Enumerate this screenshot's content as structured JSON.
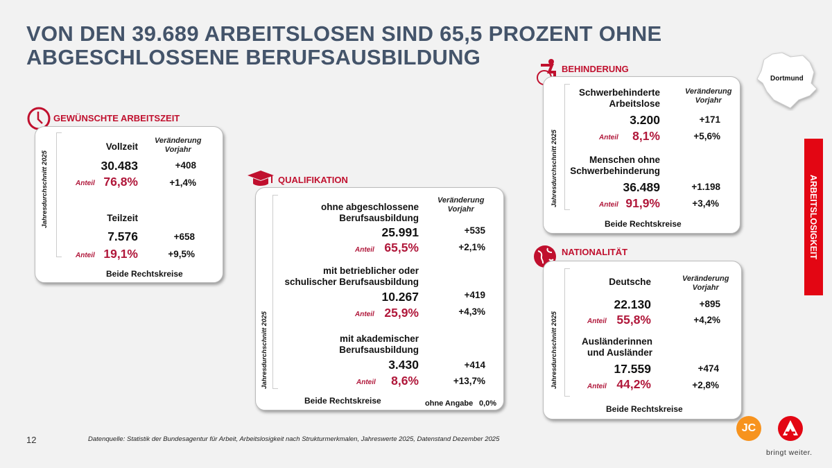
{
  "title": "VON DEN 39.689 ARBEITSLOSEN SIND 65,5 PROZENT OHNE ABGESCHLOSSENE BERUFSAUSBILDUNG",
  "common": {
    "vert": "Jahresdurchschnitt 2025",
    "change_header_1": "Veränderung",
    "change_header_2": "Vorjahr",
    "anteil": "Anteil",
    "footer": "Beide Rechtskreise"
  },
  "arbeitszeit": {
    "heading": "GEWÜNSCHTE ARBEITSZEIT",
    "rows": [
      {
        "label": "Vollzeit",
        "value": "30.483",
        "change": "+408",
        "share": "76,8%",
        "share_change": "+1,4%"
      },
      {
        "label": "Teilzeit",
        "value": "7.576",
        "change": "+658",
        "share": "19,1%",
        "share_change": "+9,5%"
      }
    ]
  },
  "qualifikation": {
    "heading": "QUALIFIKATION",
    "rows": [
      {
        "label1": "ohne abgeschlossene",
        "label2": "Berufsausbildung",
        "value": "25.991",
        "change": "+535",
        "share": "65,5%",
        "share_change": "+2,1%"
      },
      {
        "label1": "mit betrieblicher oder",
        "label2": "schulischer Berufsausbildung",
        "value": "10.267",
        "change": "+419",
        "share": "25,9%",
        "share_change": "+4,3%"
      },
      {
        "label1": "mit akademischer",
        "label2": "Berufsausbildung",
        "value": "3.430",
        "change": "+414",
        "share": "8,6%",
        "share_change": "+13,7%"
      }
    ],
    "no_answer_label": "ohne Angabe",
    "no_answer_value": "0,0%"
  },
  "behinderung": {
    "heading": "BEHINDERUNG",
    "rows": [
      {
        "label1": "Schwerbehinderte",
        "label2": "Arbeitslose",
        "value": "3.200",
        "change": "+171",
        "share": "8,1%",
        "share_change": "+5,6%"
      },
      {
        "label1": "Menschen ohne",
        "label2": "Schwerbehinderung",
        "value": "36.489",
        "change": "+1.198",
        "share": "91,9%",
        "share_change": "+3,4%"
      }
    ]
  },
  "nationalitaet": {
    "heading": "NATIONALITÄT",
    "rows": [
      {
        "label1": "Deutsche",
        "value": "22.130",
        "change": "+895",
        "share": "55,8%",
        "share_change": "+4,2%"
      },
      {
        "label1": "Ausländerinnen",
        "label2": "und Ausländer",
        "value": "17.559",
        "change": "+474",
        "share": "44,2%",
        "share_change": "+2,8%"
      }
    ]
  },
  "map_label": "Dortmund",
  "side_tab": "ARBEITSLOSIGKEIT",
  "page_number": "12",
  "source": "Datenquelle: Statistik der Bundesagentur für Arbeit, Arbeitslosigkeit nach Strukturmerkmalen, Jahreswerte 2025, Datenstand Dezember 2025",
  "logos": {
    "jc": "JC",
    "ba_tagline": "bringt weiter."
  },
  "colors": {
    "accent": "#c0102e",
    "title": "#44546a",
    "tab": "#e30613",
    "jc": "#f7931e"
  }
}
